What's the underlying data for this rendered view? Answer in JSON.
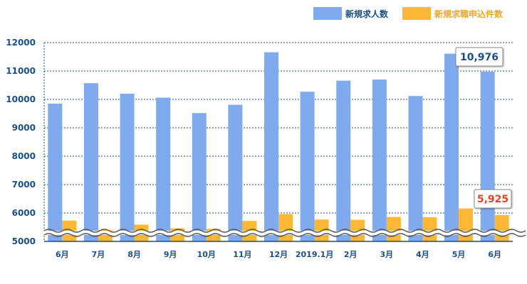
{
  "chart_data": {
    "type": "bar",
    "categories": [
      "6月",
      "7月",
      "8月",
      "9月",
      "10月",
      "11月",
      "12月",
      "2019.1月",
      "2月",
      "3月",
      "4月",
      "5月",
      "6月"
    ],
    "series": [
      {
        "name": "新規求人数",
        "color": "#7faaee",
        "values": [
          9850,
          10570,
          10200,
          10060,
          9520,
          9810,
          11660,
          10270,
          10660,
          10700,
          10120,
          11610,
          10976
        ]
      },
      {
        "name": "新規求職申込件数",
        "color": "#fbb735",
        "values": [
          5730,
          5400,
          5590,
          5460,
          5440,
          5720,
          5960,
          5770,
          5760,
          5860,
          5850,
          6160,
          5925
        ]
      }
    ],
    "yticks": [
      "5000",
      "6000",
      "7000",
      "8000",
      "9000",
      "10000",
      "11000",
      "12000"
    ],
    "ylim": [
      5000,
      12000
    ],
    "axis_break": true,
    "grid": true,
    "legend_position": "top-right",
    "annotations": [
      {
        "series": 0,
        "index": 12,
        "text": "10,976",
        "color": "#1a4f8a"
      },
      {
        "series": 1,
        "index": 12,
        "text": "5,925",
        "color": "#e0442c"
      }
    ]
  }
}
